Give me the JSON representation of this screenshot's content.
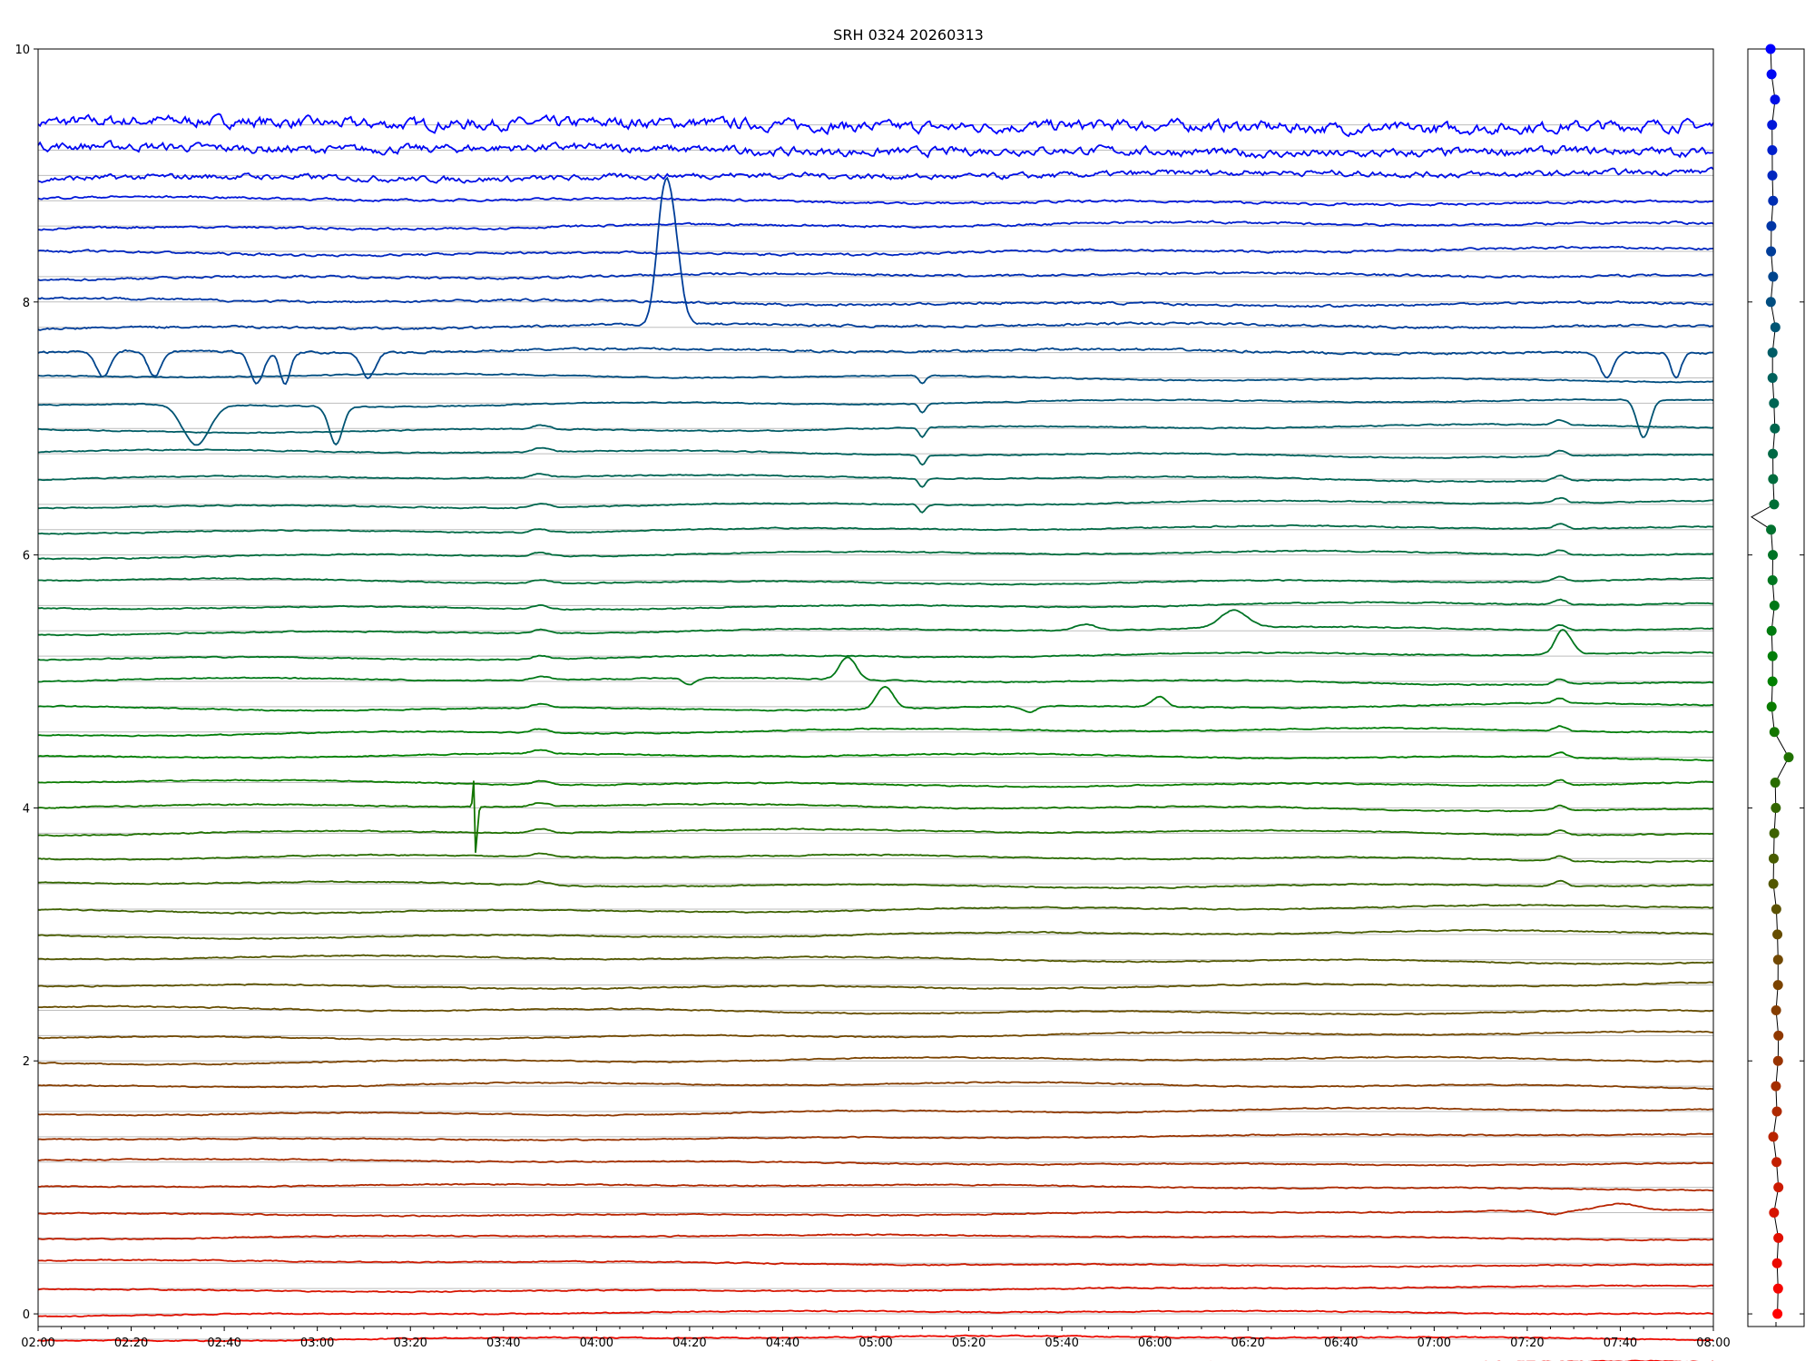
{
  "chart_data": {
    "type": "line",
    "title": "SRH 0324 20260313",
    "xlabel": "",
    "ylabel": "",
    "xlim": [
      "02:00",
      "08:00"
    ],
    "ylim": [
      -0.1,
      10
    ],
    "x_tick_labels": [
      "02:00",
      "02:20",
      "02:40",
      "03:00",
      "03:20",
      "03:40",
      "04:00",
      "04:20",
      "04:40",
      "05:00",
      "05:20",
      "05:40",
      "06:00",
      "06:20",
      "06:40",
      "07:00",
      "07:20",
      "07:40",
      "08:00"
    ],
    "y_tick_labels": [
      "0",
      "2",
      "4",
      "6",
      "8",
      "10"
    ],
    "grid": "horizontal baseline per trace",
    "legend": "none",
    "traces": 51,
    "trace_spacing": 0.2,
    "top_trace_offset": 9.4,
    "color_gradient": [
      "#0000ff",
      "#006060",
      "#008000",
      "#804000",
      "#ff0000"
    ],
    "events": [
      {
        "trace": 8,
        "x": "04:16",
        "kind": "pulse",
        "amplitude": 0.85,
        "width_min": 2.5
      },
      {
        "trace": 8,
        "x": "04:14",
        "kind": "pulse",
        "amplitude": 0.55,
        "width_min": 2
      },
      {
        "trace": 9,
        "x": "02:14",
        "kind": "dip",
        "amplitude": -0.2,
        "width_min": 2
      },
      {
        "trace": 9,
        "x": "02:25",
        "kind": "dip",
        "amplitude": -0.2,
        "width_min": 2
      },
      {
        "trace": 9,
        "x": "02:47",
        "kind": "dip",
        "amplitude": -0.25,
        "width_min": 2
      },
      {
        "trace": 9,
        "x": "02:53",
        "kind": "dip",
        "amplitude": -0.25,
        "width_min": 1.5
      },
      {
        "trace": 9,
        "x": "03:11",
        "kind": "dip",
        "amplitude": -0.2,
        "width_min": 2
      },
      {
        "trace": 9,
        "x": "07:37",
        "kind": "dip",
        "amplitude": -0.2,
        "width_min": 2
      },
      {
        "trace": 9,
        "x": "07:52",
        "kind": "dip",
        "amplitude": -0.2,
        "width_min": 1.5
      },
      {
        "trace": 11,
        "x": "02:34",
        "kind": "dip",
        "amplitude": -0.32,
        "width_min": 4
      },
      {
        "trace": 11,
        "x": "03:04",
        "kind": "dip",
        "amplitude": -0.3,
        "width_min": 2
      },
      {
        "trace": 11,
        "x": "07:45",
        "kind": "dip",
        "amplitude": -0.3,
        "width_min": 2
      },
      {
        "trace": 10,
        "x": "05:10",
        "kind": "dip",
        "amplitude": -0.06,
        "width_min": 1
      },
      {
        "trace": 11,
        "x": "05:10",
        "kind": "dip",
        "amplitude": -0.07,
        "width_min": 1
      },
      {
        "trace": 12,
        "x": "05:10",
        "kind": "dip",
        "amplitude": -0.08,
        "width_min": 1
      },
      {
        "trace": 13,
        "x": "05:10",
        "kind": "dip",
        "amplitude": -0.08,
        "width_min": 1
      },
      {
        "trace": 14,
        "x": "05:10",
        "kind": "dip",
        "amplitude": -0.07,
        "width_min": 1
      },
      {
        "trace": 15,
        "x": "05:10",
        "kind": "dip",
        "amplitude": -0.06,
        "width_min": 1
      },
      {
        "trace": 20,
        "x": "06:17",
        "kind": "pulse",
        "amplitude": 0.14,
        "width_min": 4
      },
      {
        "trace": 20,
        "x": "05:45",
        "kind": "pulse",
        "amplitude": 0.05,
        "width_min": 3
      },
      {
        "trace": 21,
        "x": "07:28",
        "kind": "pulse",
        "amplitude": 0.16,
        "width_min": 2.5
      },
      {
        "trace": 22,
        "x": "04:54",
        "kind": "pulse",
        "amplitude": 0.18,
        "width_min": 2.5
      },
      {
        "trace": 22,
        "x": "04:20",
        "kind": "dip",
        "amplitude": -0.05,
        "width_min": 2
      },
      {
        "trace": 23,
        "x": "05:02",
        "kind": "pulse",
        "amplitude": 0.18,
        "width_min": 2.5
      },
      {
        "trace": 23,
        "x": "06:01",
        "kind": "pulse",
        "amplitude": 0.08,
        "width_min": 2
      },
      {
        "trace": 23,
        "x": "05:33",
        "kind": "dip",
        "amplitude": -0.05,
        "width_min": 2
      },
      {
        "trace": 27,
        "x": "03:34",
        "kind": "spike",
        "amplitude": 0.2,
        "width_min": 0.5
      },
      {
        "trace": 43,
        "x": "07:40",
        "kind": "pulse",
        "amplitude": 0.05,
        "width_min": 5
      },
      {
        "trace": 43,
        "x": "07:26",
        "kind": "dip",
        "amplitude": -0.03,
        "width_min": 3
      }
    ],
    "side_panel": {
      "type": "scatter",
      "markers": 51,
      "y_values_from": 0,
      "y_values_step": 0.2,
      "outlier_marker": {
        "index": 22,
        "offset": "right"
      },
      "gap_between": [
        32,
        31
      ]
    }
  }
}
